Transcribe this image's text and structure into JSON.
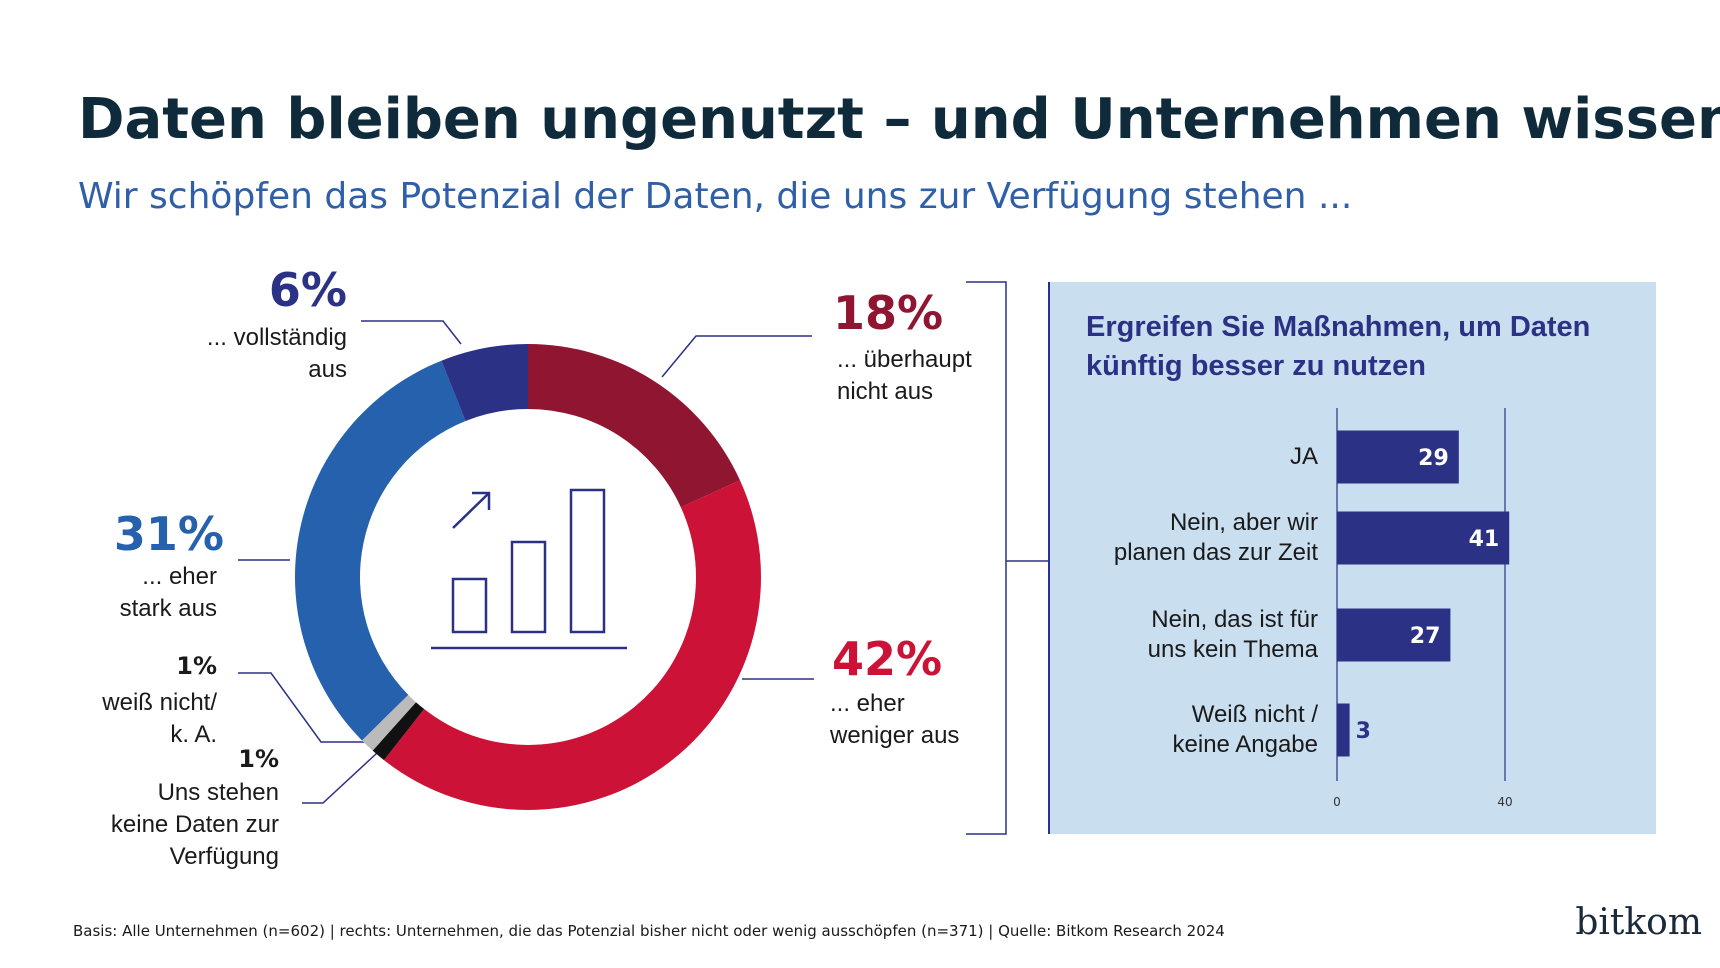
{
  "title": "Daten bleiben ungenutzt – und Unternehmen wissen das",
  "subtitle": "Wir schöpfen das Potenzial der Daten, die uns zur Verfügung stehen ...",
  "footer": "Basis: Alle Unternehmen (n=602) | rechts: Unternehmen, die das Potenzial bisher nicht oder wenig ausschöpfen (n=371) | Quelle: Bitkom Research 2024",
  "logo": "bitkom",
  "chart_data": [
    {
      "type": "pie",
      "categories": [
        "... überhaupt\nnicht aus",
        "... eher\nweniger aus",
        "Uns stehen\nkeine Daten zur\nVerfügung",
        "weiß nicht/\nk. A.",
        "... eher\nstark aus",
        "... vollständig\naus"
      ],
      "values": [
        18,
        42,
        1,
        1,
        31,
        6
      ],
      "value_labels": [
        "18%",
        "42%",
        "1%",
        "1%",
        "31%",
        "6%"
      ],
      "colors": [
        "#8f1530",
        "#cc1236",
        "#111111",
        "#bbbbbb",
        "#2561ad",
        "#2b3185"
      ]
    },
    {
      "type": "bar",
      "title": "Ergreifen Sie Maßnahmen, um Daten\nkünftig besser zu nutzen",
      "categories": [
        "JA",
        "Nein, aber wir\nplanen das zur Zeit",
        "Nein, das ist für\nuns kein Thema",
        "Weiß nicht /\nkeine Angabe"
      ],
      "values": [
        29,
        41,
        27,
        3
      ],
      "color": "#2b3185",
      "xlim": [
        0,
        50
      ],
      "xticks": [
        0,
        40
      ]
    }
  ]
}
